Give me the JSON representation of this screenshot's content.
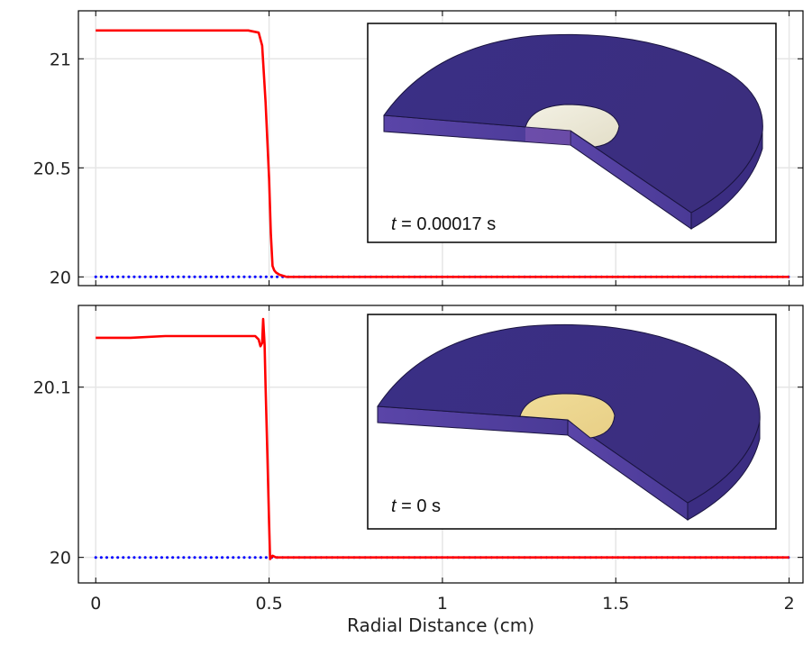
{
  "chart_data": [
    {
      "type": "line",
      "xlabel": "",
      "ylabel": "",
      "xlim": [
        -0.05,
        2.04
      ],
      "ylim": [
        19.96,
        21.22
      ],
      "yticks": [
        20,
        20.5,
        21
      ],
      "ytick_labels": [
        "20",
        "20.5",
        "21"
      ],
      "grid": true,
      "series": [
        {
          "color": "#ff0000",
          "style": "solid",
          "x": [
            0,
            0.1,
            0.2,
            0.3,
            0.4,
            0.44,
            0.47,
            0.48,
            0.49,
            0.5,
            0.505,
            0.51,
            0.515,
            0.52,
            0.53,
            0.55,
            0.6,
            0.8,
            1.0,
            1.5,
            2.0
          ],
          "y": [
            21.13,
            21.13,
            21.13,
            21.13,
            21.13,
            21.13,
            21.12,
            21.06,
            20.8,
            20.45,
            20.2,
            20.05,
            20.03,
            20.02,
            20.01,
            20.0,
            20.0,
            20.0,
            20.0,
            20.0,
            20.0
          ]
        },
        {
          "color": "#0000ff",
          "style": "dotted",
          "x": [
            0,
            2.0
          ],
          "y": [
            20.0,
            20.0
          ]
        }
      ],
      "inset": {
        "time_var": "t",
        "time_value": " = 0.00017 s"
      }
    },
    {
      "type": "line",
      "xlabel": "Radial Distance (cm)",
      "ylabel": "",
      "xlim": [
        -0.05,
        2.04
      ],
      "ylim": [
        19.985,
        20.148
      ],
      "xticks": [
        0,
        0.5,
        1,
        1.5,
        2
      ],
      "xtick_labels": [
        "0",
        "0.5",
        "1",
        "1.5",
        "2"
      ],
      "yticks": [
        20,
        20.1
      ],
      "ytick_labels": [
        "20",
        "20.1"
      ],
      "grid": true,
      "series": [
        {
          "color": "#ff0000",
          "style": "solid",
          "x": [
            0,
            0.1,
            0.2,
            0.3,
            0.4,
            0.44,
            0.46,
            0.47,
            0.475,
            0.48,
            0.483,
            0.487,
            0.49,
            0.495,
            0.5,
            0.503,
            0.506,
            0.51,
            0.52,
            0.55,
            0.6,
            1.0,
            1.5,
            2.0
          ],
          "y": [
            20.129,
            20.129,
            20.13,
            20.13,
            20.13,
            20.13,
            20.13,
            20.128,
            20.124,
            20.126,
            20.14,
            20.125,
            20.1,
            20.06,
            20.02,
            19.999,
            20.0,
            20.001,
            20.0,
            20.0,
            20.0,
            20.0,
            20.0,
            20.0
          ]
        },
        {
          "color": "#0000ff",
          "style": "dotted",
          "x": [
            0,
            2.0
          ],
          "y": [
            20.0,
            20.0
          ]
        }
      ],
      "inset": {
        "time_var": "t",
        "time_value": " = 0 s"
      }
    }
  ]
}
